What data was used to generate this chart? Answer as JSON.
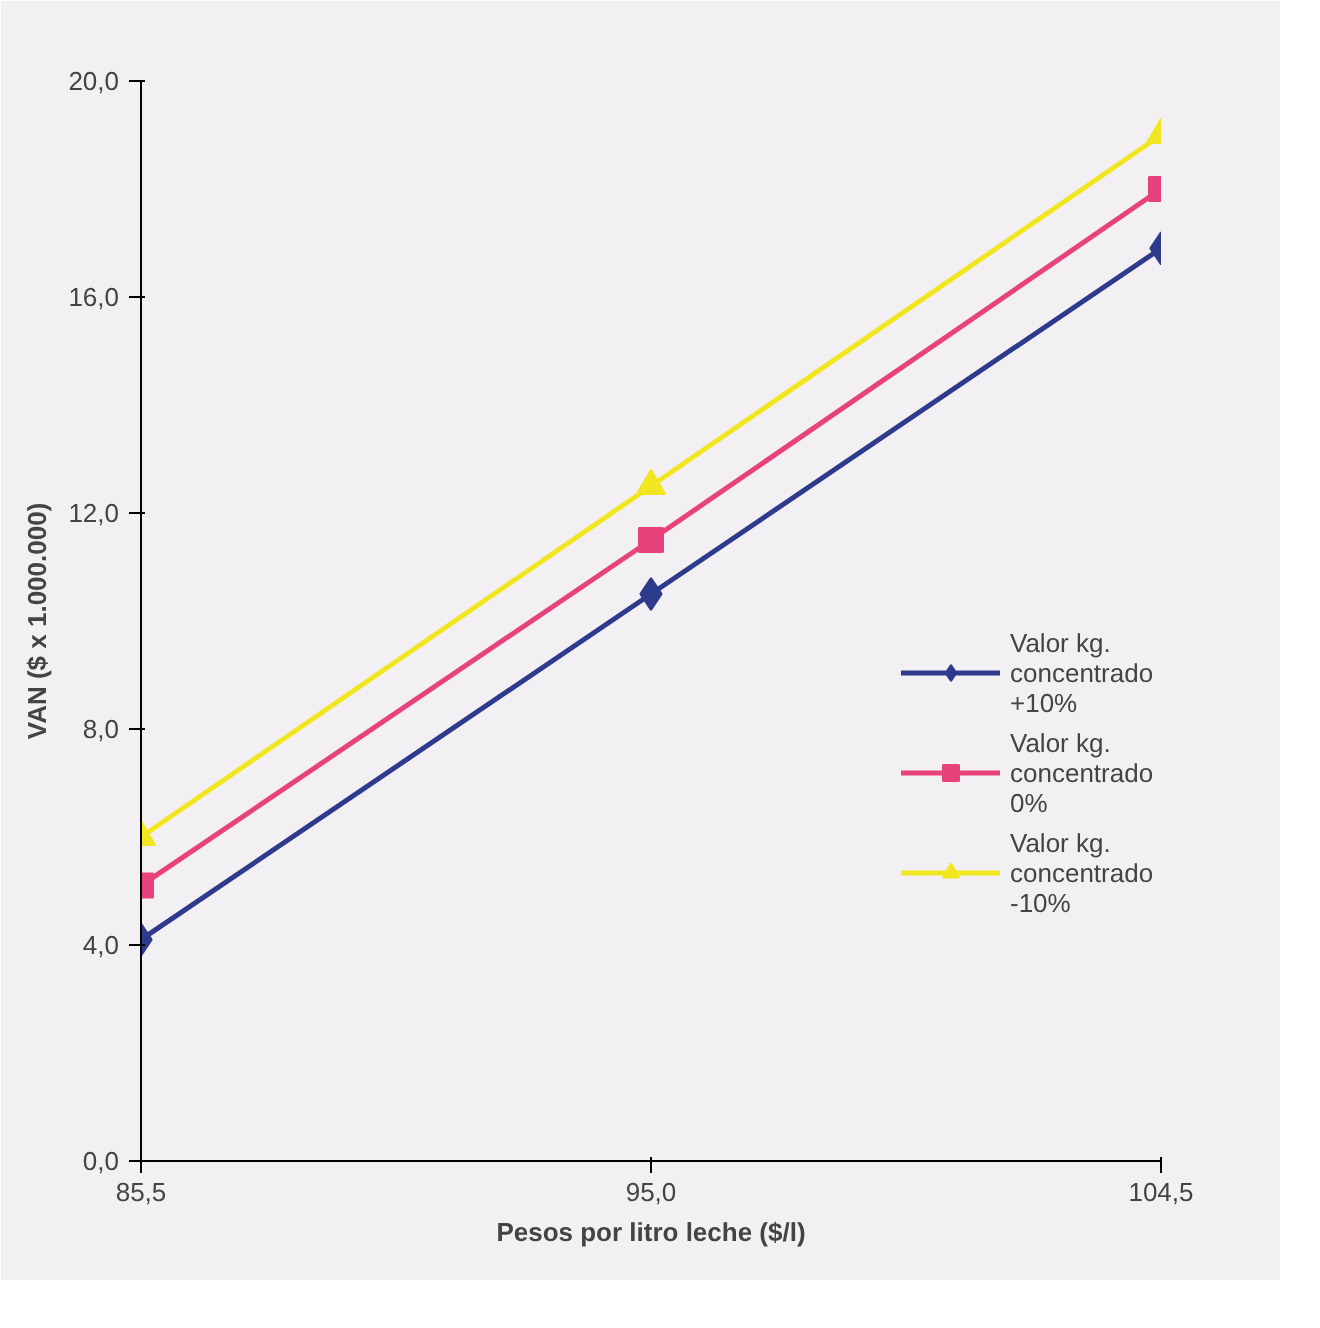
{
  "chart_data": {
    "type": "line",
    "xlabel": "Pesos por litro leche ($/l)",
    "ylabel": "VAN ($ x 1.000.000)",
    "x": [
      85.5,
      95.0,
      104.5
    ],
    "xlim": [
      85.5,
      104.5
    ],
    "xticks": [
      {
        "value": 85.5,
        "label": "85,5"
      },
      {
        "value": 95.0,
        "label": "95,0"
      },
      {
        "value": 104.5,
        "label": "104,5"
      }
    ],
    "ylim": [
      0,
      20
    ],
    "yticks": [
      {
        "value": 0,
        "label": "0,0"
      },
      {
        "value": 4,
        "label": "4,0"
      },
      {
        "value": 8,
        "label": "8,0"
      },
      {
        "value": 12,
        "label": "12,0"
      },
      {
        "value": 16,
        "label": "16,0"
      },
      {
        "value": 20,
        "label": "20,0"
      }
    ],
    "grid": false,
    "legend": "right",
    "line_style": "solid",
    "series": [
      {
        "name": "Valor kg. concentrado +10%",
        "color": "#2e3a8c",
        "marker": "diamond",
        "values": [
          4.1,
          10.5,
          16.9
        ]
      },
      {
        "name": "Valor kg. concentrado 0%",
        "color": "#e8427c",
        "marker": "square",
        "values": [
          5.1,
          11.5,
          18.0
        ]
      },
      {
        "name": "Valor kg. concentrado -10%",
        "color": "#f2e620",
        "marker": "triangle",
        "values": [
          6.0,
          12.5,
          19.0
        ]
      }
    ]
  }
}
